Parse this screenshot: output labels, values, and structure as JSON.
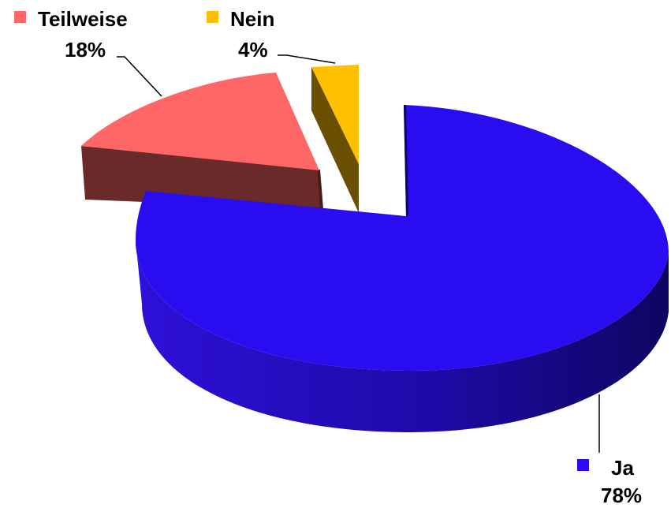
{
  "chart_data": {
    "type": "pie",
    "title": "",
    "slices": [
      {
        "label": "Ja",
        "value": 78,
        "value_label": "78%",
        "color": "#2a0cf0",
        "side_color": "#1a0a90"
      },
      {
        "label": "Teilweise",
        "value": 18,
        "value_label": "18%",
        "color": "#ff6666",
        "side_color": "#6b2a2a"
      },
      {
        "label": "Nein",
        "value": 4,
        "value_label": "4%",
        "color": "#ffc000",
        "side_color": "#6b4f00"
      }
    ],
    "legend": "inline-labels",
    "three_d": true,
    "exploded": true
  }
}
